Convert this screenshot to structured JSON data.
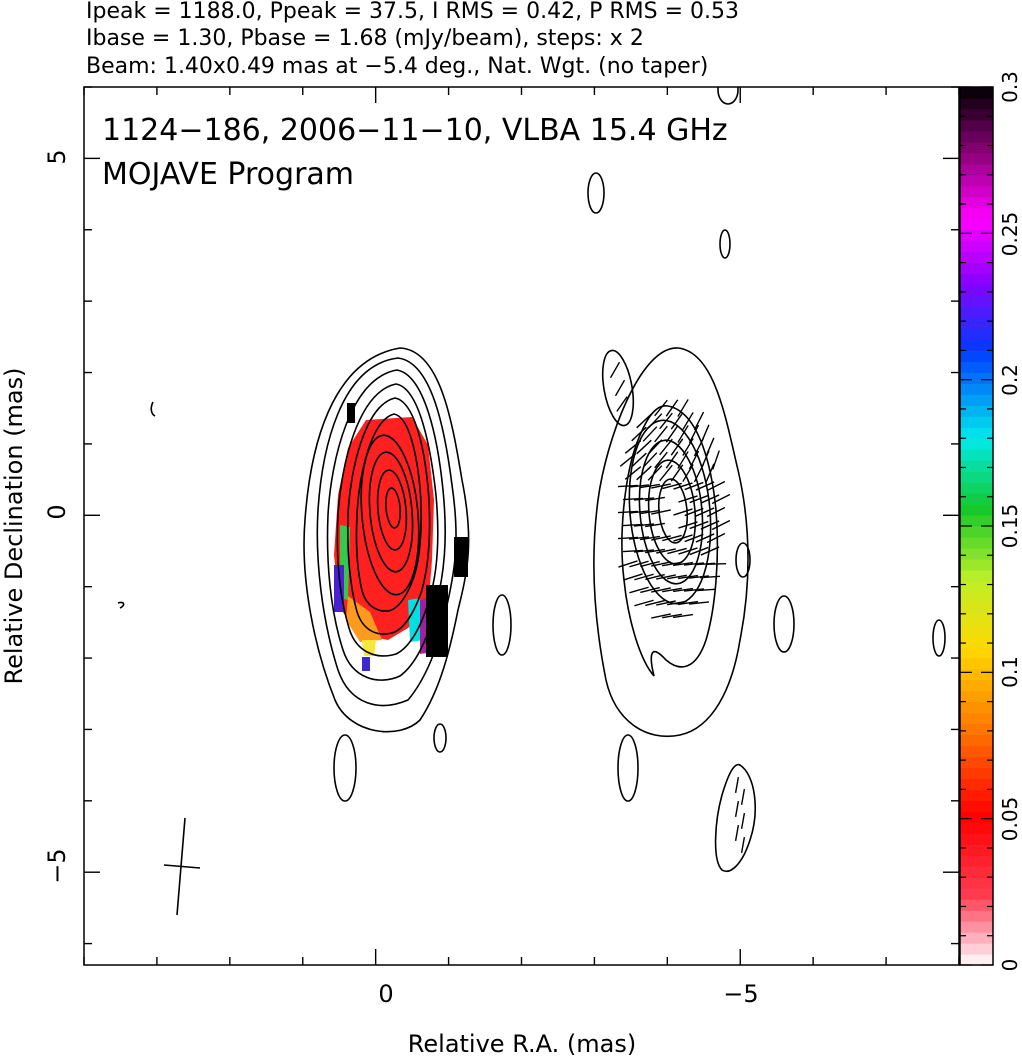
{
  "header": {
    "line1": "Ipeak = 1188.0, Ppeak = 37.5, I RMS = 0.42, P RMS = 0.53",
    "line2": "Ibase = 1.30, Pbase = 1.68 (mJy/beam), steps: x 2",
    "line3": "Beam: 1.40x0.49 mas at −5.4 deg., Nat. Wgt. (no taper)"
  },
  "panel": {
    "title_line1": "1124−186, 2006−11−10, VLBA 15.4 GHz",
    "title_line2": "MOJAVE Program"
  },
  "chart_data": {
    "type": "heatmap",
    "title": "1124−186, 2006−11−10, VLBA 15.4 GHz",
    "subtitle": "MOJAVE Program",
    "xlabel": "Relative R.A. (mas)",
    "ylabel": "Relative Declination (mas)",
    "xlim": [
      4,
      -8
    ],
    "ylim": [
      -6.3,
      6
    ],
    "x_ticks": [
      0,
      -5
    ],
    "y_ticks": [
      5,
      0,
      -5
    ],
    "x_tick_labels": [
      "0",
      "−5"
    ],
    "y_tick_labels": [
      "5",
      "0",
      "−5"
    ],
    "colorbar": {
      "range": [
        0,
        0.3
      ],
      "ticks": [
        0,
        0.05,
        0.1,
        0.15,
        0.2,
        0.25,
        0.3
      ],
      "tick_labels": [
        "0",
        "0.05",
        "0.1",
        "0.15",
        "0.2",
        "0.25",
        "0.3"
      ]
    },
    "total_intensity_panel_center": [
      0,
      0
    ],
    "polarization_panel_center": [
      -4,
      0
    ],
    "beam": {
      "major_mas": 1.4,
      "minor_mas": 0.49,
      "pa_deg": -5.4,
      "center": [
        3,
        -5
      ]
    },
    "contour_levels_mJy_per_beam": [
      1.3,
      2.6,
      5.2,
      10.4,
      20.8,
      41.6,
      83.2,
      166.4,
      332.8,
      665.6
    ],
    "peak_intensity_mJy_per_beam": 1188.0,
    "peak_polarization_mJy_per_beam": 37.5,
    "polarization_ticks_evpa": true
  }
}
